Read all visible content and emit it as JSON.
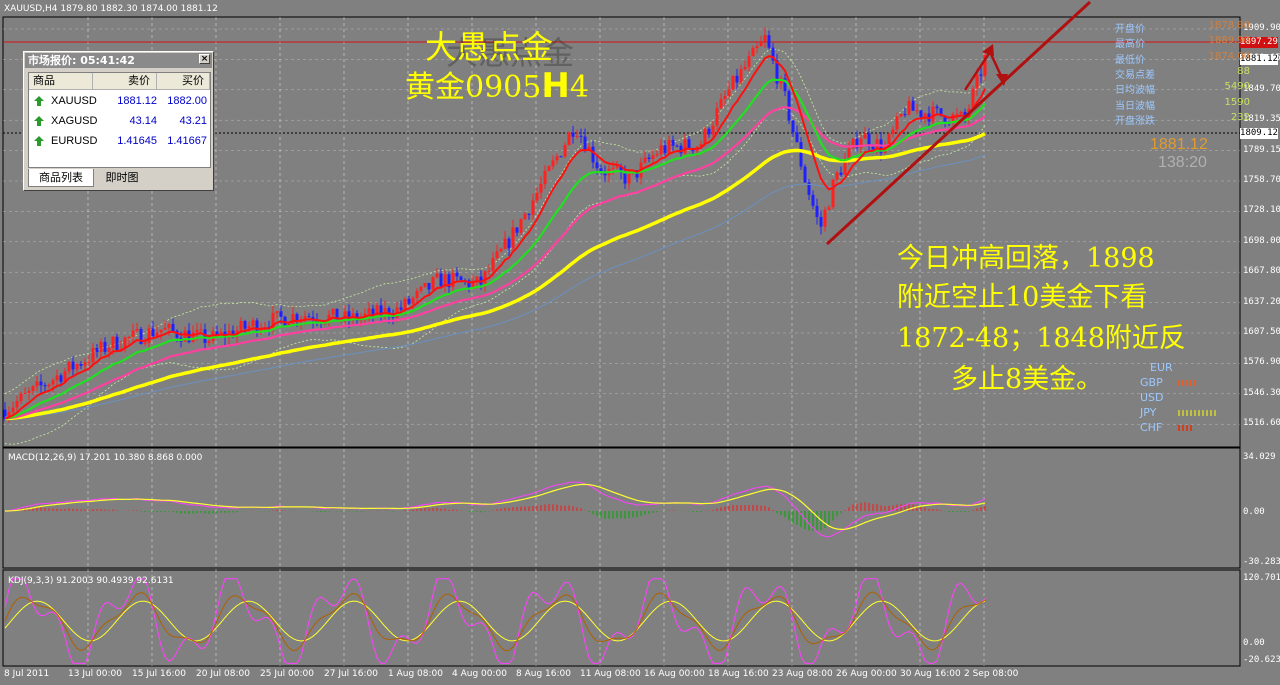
{
  "chart_header": "XAUUSD,H4  1879.80 1882.30 1874.00 1881.12",
  "price_axis": [
    "1909.90",
    "1880.05",
    "1849.70",
    "1819.35",
    "1789.15",
    "1758.70",
    "1728.10",
    "1698.00",
    "1667.80",
    "1637.20",
    "1607.50",
    "1576.90",
    "1546.30",
    "1516.60"
  ],
  "price_badges": {
    "high_line": "1897.29",
    "current": "1881.12",
    "dotted_line": "1809.12"
  },
  "time_axis": [
    "8 Jul 2011",
    "13 Jul 00:00",
    "15 Jul 16:00",
    "20 Jul 08:00",
    "25 Jul 00:00",
    "27 Jul 16:00",
    "1 Aug 08:00",
    "4 Aug 00:00",
    "8 Aug 16:00",
    "11 Aug 08:00",
    "16 Aug 00:00",
    "18 Aug 16:00",
    "23 Aug 08:00",
    "26 Aug 00:00",
    "30 Aug 16:00",
    "2 Sep 08:00"
  ],
  "info_panel": [
    {
      "k": "开盘价",
      "v": "1878.80",
      "color": "#d08040"
    },
    {
      "k": "最高价",
      "v": "1889.90",
      "color": "#d08040"
    },
    {
      "k": "最低价",
      "v": "1874.00",
      "color": "#d08040"
    },
    {
      "k": "交易点差",
      "v": "88",
      "color": "#c8e060"
    },
    {
      "k": "日均波幅",
      "v": "5490",
      "color": "#c8e060"
    },
    {
      "k": "当日波幅",
      "v": "1590",
      "color": "#c8e060"
    },
    {
      "k": "开盘涨跌",
      "v": "232",
      "color": "#c8e060"
    }
  ],
  "big_price": "1881.12",
  "countdown": "138:20",
  "currency_strength": [
    "EUR",
    "GBP",
    "USD",
    "JPY",
    "CHF"
  ],
  "macd_label": "MACD(12,26,9) 17.201 10.380 8.868 0.000",
  "macd_axis": [
    "34.029",
    "0.00",
    "-30.2839"
  ],
  "kdj_label": "KDJ(9,3,3) 91.2003 90.4939 92.6131",
  "kdj_axis": [
    "120.7018",
    "0.00",
    "-20.6239"
  ],
  "annotation": {
    "title1": "大愚点金",
    "title2a": "黄金0905",
    "title2b": "H",
    "title2c": "4",
    "lines": [
      "今日冲高回落，1898",
      "附近空止10美金下看",
      "1872-48；1848附近反",
      "多止8美金。"
    ]
  },
  "market_window": {
    "title": "市场报价: 05:41:42",
    "close": "×",
    "headers": [
      "商品",
      "卖价",
      "买价"
    ],
    "rows": [
      {
        "sym": "XAUUSD",
        "bid": "1881.12",
        "ask": "1882.00"
      },
      {
        "sym": "XAGUSD",
        "bid": "43.14",
        "ask": "43.21"
      },
      {
        "sym": "EURUSD",
        "bid": "1.41645",
        "ask": "1.41667"
      }
    ],
    "tabs": [
      "商品列表",
      "即时图"
    ]
  },
  "colors": {
    "bg": "#808080",
    "bull": "#ff2020",
    "bear": "#2020ff",
    "ema_fast": "#ff1010",
    "ema_mid": "#20e020",
    "ema_slow": "#ff40a0",
    "ema_long": "#ffff00",
    "annotation": "#ffff00"
  }
}
